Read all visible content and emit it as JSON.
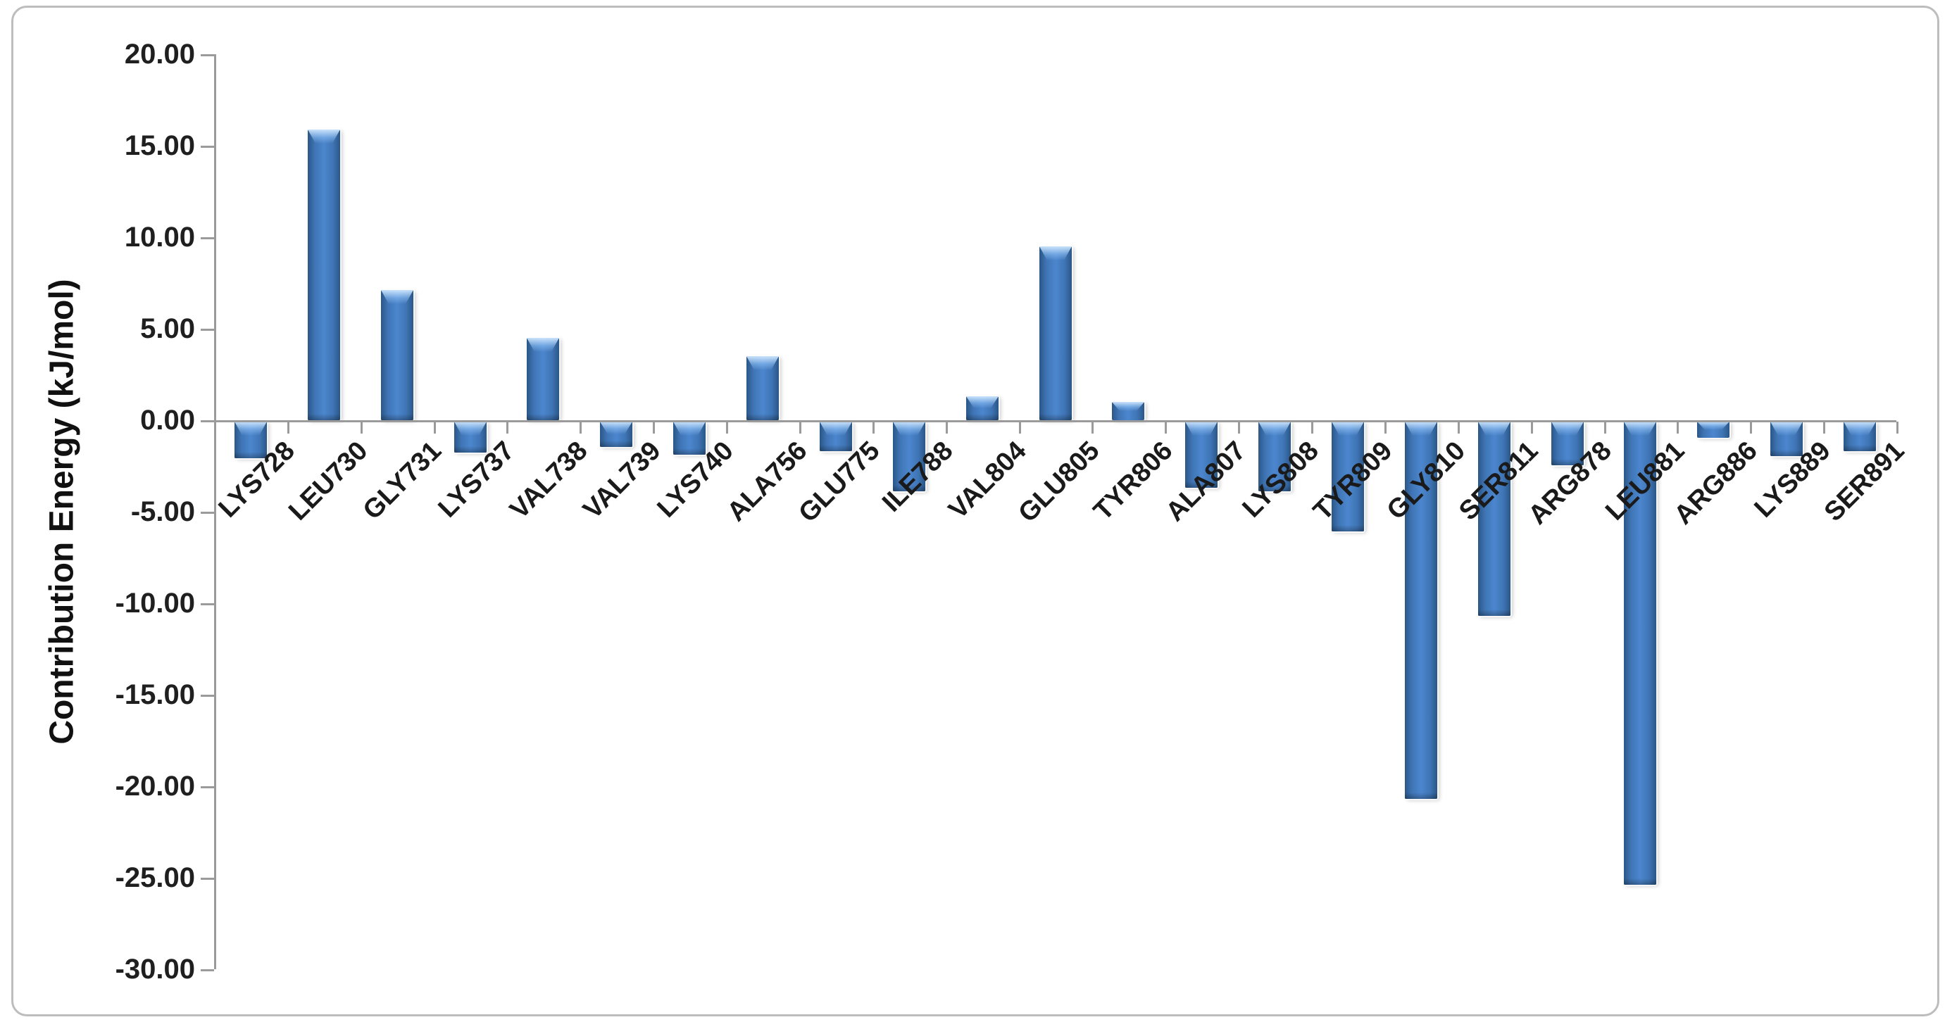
{
  "chart_data": {
    "type": "bar",
    "title": "",
    "xlabel": "",
    "ylabel": "Contribution  Energy  (kJ/mol)",
    "categories": [
      "LYS728",
      "LEU730",
      "GLY731",
      "LYS737",
      "VAL738",
      "VAL739",
      "LYS740",
      "ALA756",
      "GLU775",
      "ILE788",
      "VAL804",
      "GLU805",
      "TYR806",
      "ALA807",
      "LYS808",
      "TYR809",
      "GLY810",
      "SER811",
      "ARG878",
      "LEU881",
      "ARG886",
      "LYS889",
      "SER891"
    ],
    "values": [
      -2.0,
      15.9,
      7.1,
      -1.7,
      4.5,
      -1.4,
      -1.8,
      3.5,
      -1.6,
      -3.8,
      1.3,
      9.5,
      1.0,
      -3.6,
      -3.8,
      -6.0,
      -20.6,
      -10.6,
      -2.4,
      -25.3,
      -0.9,
      -1.9,
      -1.6
    ],
    "ylim": [
      -30,
      20
    ],
    "ytick_values": [
      20,
      15,
      10,
      5,
      0,
      -5,
      -10,
      -15,
      -20,
      -25,
      -30
    ],
    "ytick_labels": [
      "20.00",
      "15.00",
      "10.00",
      "5.00",
      "0.00",
      "-5.00",
      "-10.00",
      "-15.00",
      "-20.00",
      "-25.00",
      "-30.00"
    ],
    "grid": "off",
    "legend": "none",
    "bar_color_main": "#3F76B8",
    "bar_color_edge": "#2B5787",
    "bar_highlight": "#9CC6F2",
    "axis_color": "#9B9B9B",
    "text_color": "#1A1A1A",
    "frame_color": "#BDBDBD"
  }
}
